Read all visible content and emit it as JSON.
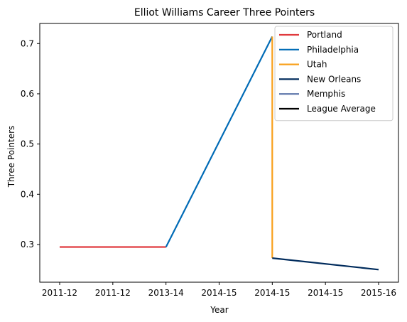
{
  "chart_data": {
    "type": "line",
    "title": "Elliot Williams Career Three Pointers",
    "xlabel": "Year",
    "ylabel": "Three Pointers",
    "categories": [
      "2011-12",
      "2011-12",
      "2013-14",
      "2014-15",
      "2014-15",
      "2014-15",
      "2015-16"
    ],
    "ylim": [
      0.225,
      0.74
    ],
    "yticks": [
      0.3,
      0.4,
      0.5,
      0.6,
      0.7
    ],
    "ytick_labels": [
      "0.3",
      "0.4",
      "0.5",
      "0.6",
      "0.7"
    ],
    "grid": false,
    "legend_position": "top-right",
    "series": [
      {
        "name": "Portland",
        "color": "#e03a3e",
        "points": [
          [
            0,
            0.295
          ],
          [
            2,
            0.295
          ]
        ]
      },
      {
        "name": "Philadelphia",
        "color": "#006bb6",
        "points": [
          [
            2,
            0.295
          ],
          [
            4,
            0.714
          ]
        ]
      },
      {
        "name": "Utah",
        "color": "#f9a01b",
        "points": [
          [
            4,
            0.714
          ],
          [
            4,
            0.273
          ]
        ]
      },
      {
        "name": "New Orleans",
        "color": "#002b5c",
        "points": [
          [
            4,
            0.273
          ],
          [
            6,
            0.25
          ]
        ]
      },
      {
        "name": "Memphis",
        "color": "#5d76a9",
        "points": []
      },
      {
        "name": "League Average",
        "color": "#000000",
        "points": []
      }
    ]
  }
}
